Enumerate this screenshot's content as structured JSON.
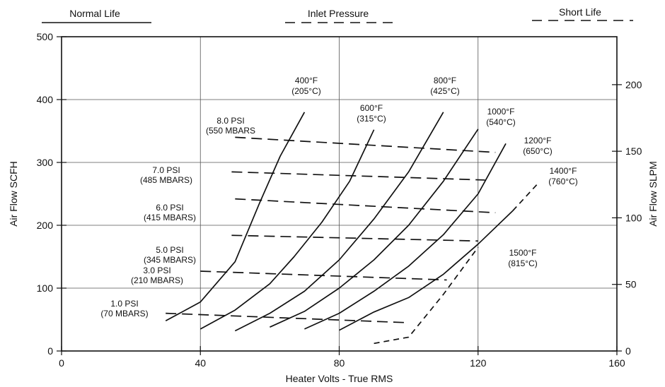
{
  "chart_data": {
    "type": "line",
    "xlabel": "Heater Volts - True RMS",
    "ylabel": "Air Flow SCFH",
    "y2label": "Air Flow SLPM",
    "xlim": [
      0,
      160
    ],
    "ylim": [
      0,
      500
    ],
    "y2lim": [
      0,
      236
    ],
    "xticks": [
      "0",
      "40",
      "80",
      "120",
      "160"
    ],
    "yticks": [
      "0",
      "100",
      "200",
      "300",
      "400",
      "500"
    ],
    "y2ticks": [
      "0",
      "50",
      "100",
      "150",
      "200"
    ],
    "grid": true,
    "legend": [
      {
        "label": "Normal Life",
        "style": "solid"
      },
      {
        "label": "Inlet Pressure",
        "style": "dashed"
      },
      {
        "label": "Short Life",
        "style": "dashed"
      }
    ],
    "temperature_series": [
      {
        "label": [
          "400°F",
          "(205°C)"
        ],
        "style": "solid",
        "x": [
          30,
          40,
          50,
          57,
          63,
          70
        ],
        "y": [
          48,
          78,
          142,
          235,
          310,
          380
        ]
      },
      {
        "label": [
          "600°F",
          "(315°C)"
        ],
        "style": "solid",
        "x": [
          40,
          50,
          60,
          67,
          75,
          83,
          90
        ],
        "y": [
          35,
          65,
          107,
          150,
          205,
          270,
          352
        ]
      },
      {
        "label": [
          "800°F",
          "(425°C)"
        ],
        "style": "solid",
        "x": [
          50,
          60,
          70,
          80,
          90,
          100,
          110
        ],
        "y": [
          32,
          60,
          95,
          145,
          210,
          285,
          380
        ]
      },
      {
        "label": [
          "1000°F",
          "(540°C)"
        ],
        "style": "solid",
        "x": [
          60,
          70,
          80,
          90,
          100,
          110,
          120
        ],
        "y": [
          38,
          63,
          100,
          145,
          200,
          270,
          353
        ]
      },
      {
        "label": [
          "1200°F",
          "(650°C)"
        ],
        "style": "solid",
        "x": [
          70,
          80,
          90,
          100,
          110,
          120,
          128
        ],
        "y": [
          35,
          60,
          95,
          135,
          185,
          250,
          330
        ]
      },
      {
        "label": [
          "1400°F",
          "(760°C)"
        ],
        "style": "solid",
        "x": [
          80,
          90,
          100,
          110,
          120,
          130
        ],
        "y": [
          33,
          62,
          85,
          122,
          170,
          223
        ]
      },
      {
        "label": [
          "1400°F",
          "(760°C)"
        ],
        "style": "dashed",
        "x": [
          130,
          137
        ],
        "y": [
          223,
          265
        ]
      },
      {
        "label": [
          "1500°F",
          "(815°C)"
        ],
        "style": "dashed",
        "x": [
          90,
          100,
          110,
          120
        ],
        "y": [
          12,
          22,
          90,
          165
        ]
      }
    ],
    "pressure_series": [
      {
        "label": [
          "8.0 PSI",
          "(550 MBARS"
        ],
        "x": [
          50,
          125
        ],
        "y": [
          340,
          316
        ]
      },
      {
        "label": [
          "7.0 PSI",
          "(485 MBARS)"
        ],
        "x": [
          49,
          122
        ],
        "y": [
          285,
          272
        ]
      },
      {
        "label": [
          "6.0 PSI",
          "(415 MBARS)"
        ],
        "x": [
          50,
          125
        ],
        "y": [
          242,
          220
        ]
      },
      {
        "label": [
          "5.0 PSI",
          "(345 MBARS)"
        ],
        "x": [
          49,
          120
        ],
        "y": [
          184,
          175
        ]
      },
      {
        "label": [
          "3.0 PSI",
          "(210 MBARS)"
        ],
        "x": [
          40,
          111
        ],
        "y": [
          127,
          113
        ]
      },
      {
        "label": [
          "1.0 PSI",
          "(70 MBARS)"
        ],
        "x": [
          30,
          100
        ],
        "y": [
          60,
          45
        ]
      }
    ]
  }
}
